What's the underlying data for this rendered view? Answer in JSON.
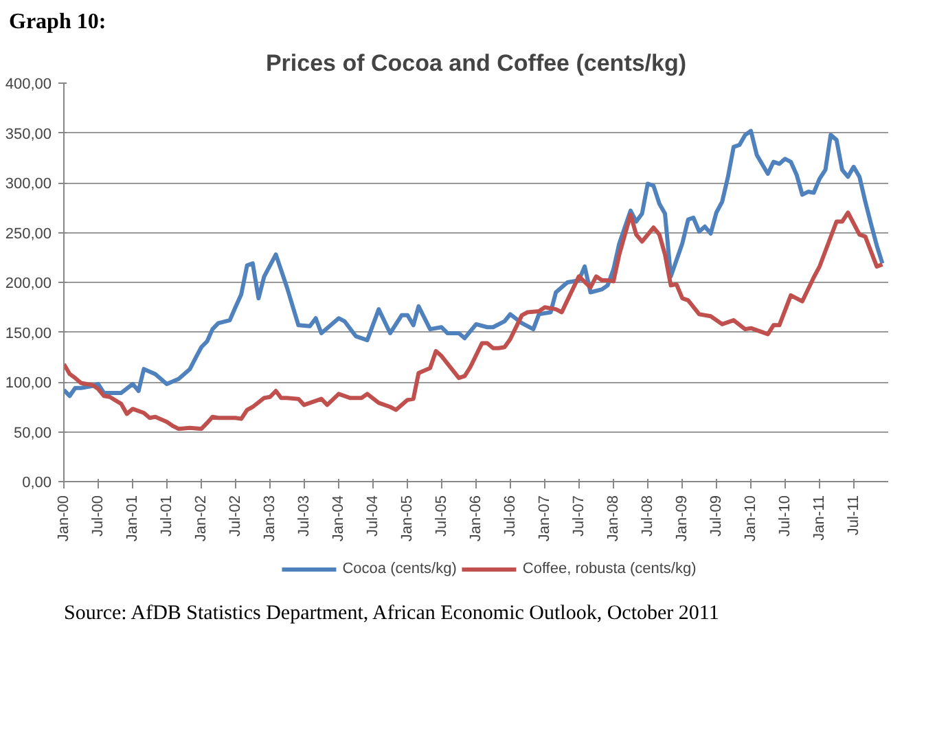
{
  "chart_data": {
    "type": "line",
    "title": "Prices of Cocoa and Coffee (cents/kg)",
    "annotations": [
      "Graph 10:",
      "Source:   AfDB Statistics Department, African Economic Outlook, October 2011"
    ],
    "xlim": [
      "2000-01",
      "2012-01"
    ],
    "xticks": [
      {
        "value": "2000-01",
        "label": "Jan-00"
      },
      {
        "value": "2000-07",
        "label": "Jul-00"
      },
      {
        "value": "2001-01",
        "label": "Jan-01"
      },
      {
        "value": "2001-07",
        "label": "Jul-01"
      },
      {
        "value": "2002-01",
        "label": "Jan-02"
      },
      {
        "value": "2002-07",
        "label": "Jul-02"
      },
      {
        "value": "2003-01",
        "label": "Jan-03"
      },
      {
        "value": "2003-07",
        "label": "Jul-03"
      },
      {
        "value": "2004-01",
        "label": "Jan-04"
      },
      {
        "value": "2004-07",
        "label": "Jul-04"
      },
      {
        "value": "2005-01",
        "label": "Jan-05"
      },
      {
        "value": "2005-07",
        "label": "Jul-05"
      },
      {
        "value": "2006-01",
        "label": "Jan-06"
      },
      {
        "value": "2006-07",
        "label": "Jul-06"
      },
      {
        "value": "2007-01",
        "label": "Jan-07"
      },
      {
        "value": "2007-07",
        "label": "Jul-07"
      },
      {
        "value": "2008-01",
        "label": "Jan-08"
      },
      {
        "value": "2008-07",
        "label": "Jul-08"
      },
      {
        "value": "2009-01",
        "label": "Jan-09"
      },
      {
        "value": "2009-07",
        "label": "Jul-09"
      },
      {
        "value": "2010-01",
        "label": "Jan-10"
      },
      {
        "value": "2010-07",
        "label": "Jul-10"
      },
      {
        "value": "2011-01",
        "label": "Jan-11"
      },
      {
        "value": "2011-07",
        "label": "Jul-11"
      }
    ],
    "ylim": [
      0,
      400
    ],
    "yticks": [
      {
        "value": 0,
        "label": "0,00"
      },
      {
        "value": 50,
        "label": "50,00"
      },
      {
        "value": 100,
        "label": "100,00"
      },
      {
        "value": 150,
        "label": "150,00"
      },
      {
        "value": 200,
        "label": "200,00"
      },
      {
        "value": 250,
        "label": "250,00"
      },
      {
        "value": 300,
        "label": "300,00"
      },
      {
        "value": 350,
        "label": "350,00"
      },
      {
        "value": 400,
        "label": "400,00"
      }
    ],
    "grid": "y",
    "legend": "bottom",
    "line_style": "solid",
    "series": [
      {
        "name": "Cocoa (cents/kg)",
        "color": "#4f81bd",
        "x": [
          "2000-01",
          "2000-02",
          "2000-03",
          "2000-04",
          "2000-06",
          "2000-07",
          "2000-08",
          "2000-11",
          "2001-01",
          "2001-02",
          "2001-03",
          "2001-05",
          "2001-07",
          "2001-09",
          "2001-11",
          "2001-12",
          "2002-01",
          "2002-02",
          "2002-03",
          "2002-04",
          "2002-06",
          "2002-07",
          "2002-08",
          "2002-09",
          "2002-10",
          "2002-11",
          "2002-12",
          "2003-02",
          "2003-04",
          "2003-06",
          "2003-08",
          "2003-09",
          "2003-10",
          "2004-01",
          "2004-02",
          "2004-04",
          "2004-06",
          "2004-08",
          "2004-10",
          "2004-12",
          "2005-01",
          "2005-02",
          "2005-03",
          "2005-05",
          "2005-07",
          "2005-08",
          "2005-10",
          "2005-11",
          "2006-01",
          "2006-03",
          "2006-04",
          "2006-06",
          "2006-07",
          "2006-09",
          "2006-11",
          "2006-12",
          "2007-02",
          "2007-03",
          "2007-05",
          "2007-07",
          "2007-08",
          "2007-09",
          "2007-11",
          "2007-12",
          "2008-01",
          "2008-02",
          "2008-04",
          "2008-05",
          "2008-06",
          "2008-07",
          "2008-08",
          "2008-09",
          "2008-10",
          "2008-11",
          "2009-01",
          "2009-02",
          "2009-03",
          "2009-04",
          "2009-05",
          "2009-06",
          "2009-07",
          "2009-08",
          "2009-09",
          "2009-10",
          "2009-11",
          "2009-12",
          "2010-01",
          "2010-02",
          "2010-04",
          "2010-05",
          "2010-06",
          "2010-07",
          "2010-08",
          "2010-09",
          "2010-10",
          "2010-11",
          "2010-12",
          "2011-01",
          "2011-02",
          "2011-03",
          "2011-04",
          "2011-05",
          "2011-06",
          "2011-07",
          "2011-08",
          "2011-09",
          "2011-10",
          "2011-11",
          "2011-12"
        ],
        "values": [
          92,
          86,
          94,
          94,
          96,
          98,
          89,
          89,
          98,
          91,
          113,
          108,
          98,
          103,
          113,
          124,
          135,
          141,
          153,
          159,
          162,
          175,
          188,
          217,
          219,
          184,
          206,
          228,
          195,
          157,
          156,
          164,
          149,
          164,
          161,
          146,
          142,
          173,
          149,
          167,
          167,
          157,
          176,
          153,
          155,
          149,
          149,
          144,
          158,
          155,
          155,
          161,
          168,
          159,
          153,
          168,
          170,
          190,
          200,
          202,
          216,
          190,
          193,
          197,
          213,
          239,
          272,
          261,
          269,
          299,
          297,
          279,
          269,
          206,
          239,
          263,
          265,
          251,
          256,
          249,
          270,
          281,
          306,
          336,
          338,
          348,
          352,
          328,
          309,
          321,
          319,
          324,
          321,
          308,
          288,
          291,
          290,
          304,
          313,
          348,
          343,
          313,
          306,
          316,
          306,
          281,
          259,
          237,
          219
        ]
      },
      {
        "name": "Coffee, robusta (cents/kg)",
        "color": "#c0504d",
        "x": [
          "2000-01",
          "2000-02",
          "2000-03",
          "2000-04",
          "2000-06",
          "2000-07",
          "2000-08",
          "2000-09",
          "2000-11",
          "2000-12",
          "2001-01",
          "2001-03",
          "2001-04",
          "2001-05",
          "2001-07",
          "2001-08",
          "2001-09",
          "2001-11",
          "2002-01",
          "2002-02",
          "2002-03",
          "2002-04",
          "2002-06",
          "2002-07",
          "2002-08",
          "2002-09",
          "2002-10",
          "2002-12",
          "2003-01",
          "2003-02",
          "2003-03",
          "2003-04",
          "2003-06",
          "2003-07",
          "2003-10",
          "2003-11",
          "2004-01",
          "2004-03",
          "2004-05",
          "2004-06",
          "2004-08",
          "2004-10",
          "2004-11",
          "2005-01",
          "2005-02",
          "2005-03",
          "2005-05",
          "2005-06",
          "2005-07",
          "2005-10",
          "2005-11",
          "2005-12",
          "2006-02",
          "2006-03",
          "2006-04",
          "2006-05",
          "2006-06",
          "2006-07",
          "2006-09",
          "2006-10",
          "2006-12",
          "2007-01",
          "2007-03",
          "2007-04",
          "2007-05",
          "2007-07",
          "2007-09",
          "2007-10",
          "2007-11",
          "2007-12",
          "2008-01",
          "2008-02",
          "2008-04",
          "2008-05",
          "2008-06",
          "2008-08",
          "2008-09",
          "2008-10",
          "2008-11",
          "2008-12",
          "2009-01",
          "2009-02",
          "2009-04",
          "2009-06",
          "2009-08",
          "2009-10",
          "2009-12",
          "2010-01",
          "2010-04",
          "2010-05",
          "2010-06",
          "2010-08",
          "2010-10",
          "2010-12",
          "2011-01",
          "2011-04",
          "2011-05",
          "2011-06",
          "2011-08",
          "2011-09",
          "2011-11",
          "2011-12"
        ],
        "values": [
          118,
          108,
          104,
          99,
          97,
          93,
          86,
          85,
          78,
          68,
          73,
          69,
          64,
          65,
          60,
          56,
          53,
          54,
          53,
          59,
          65,
          64,
          64,
          64,
          63,
          72,
          75,
          84,
          85,
          91,
          84,
          84,
          83,
          77,
          83,
          77,
          88,
          84,
          84,
          88,
          79,
          75,
          72,
          82,
          83,
          109,
          114,
          131,
          126,
          104,
          106,
          115,
          139,
          139,
          134,
          134,
          135,
          143,
          167,
          170,
          171,
          175,
          173,
          170,
          182,
          206,
          195,
          206,
          202,
          202,
          201,
          228,
          268,
          248,
          241,
          255,
          248,
          228,
          197,
          198,
          184,
          182,
          168,
          166,
          158,
          162,
          153,
          154,
          148,
          157,
          157,
          187,
          181,
          205,
          216,
          261,
          261,
          270,
          248,
          246,
          216,
          218
        ]
      }
    ]
  }
}
